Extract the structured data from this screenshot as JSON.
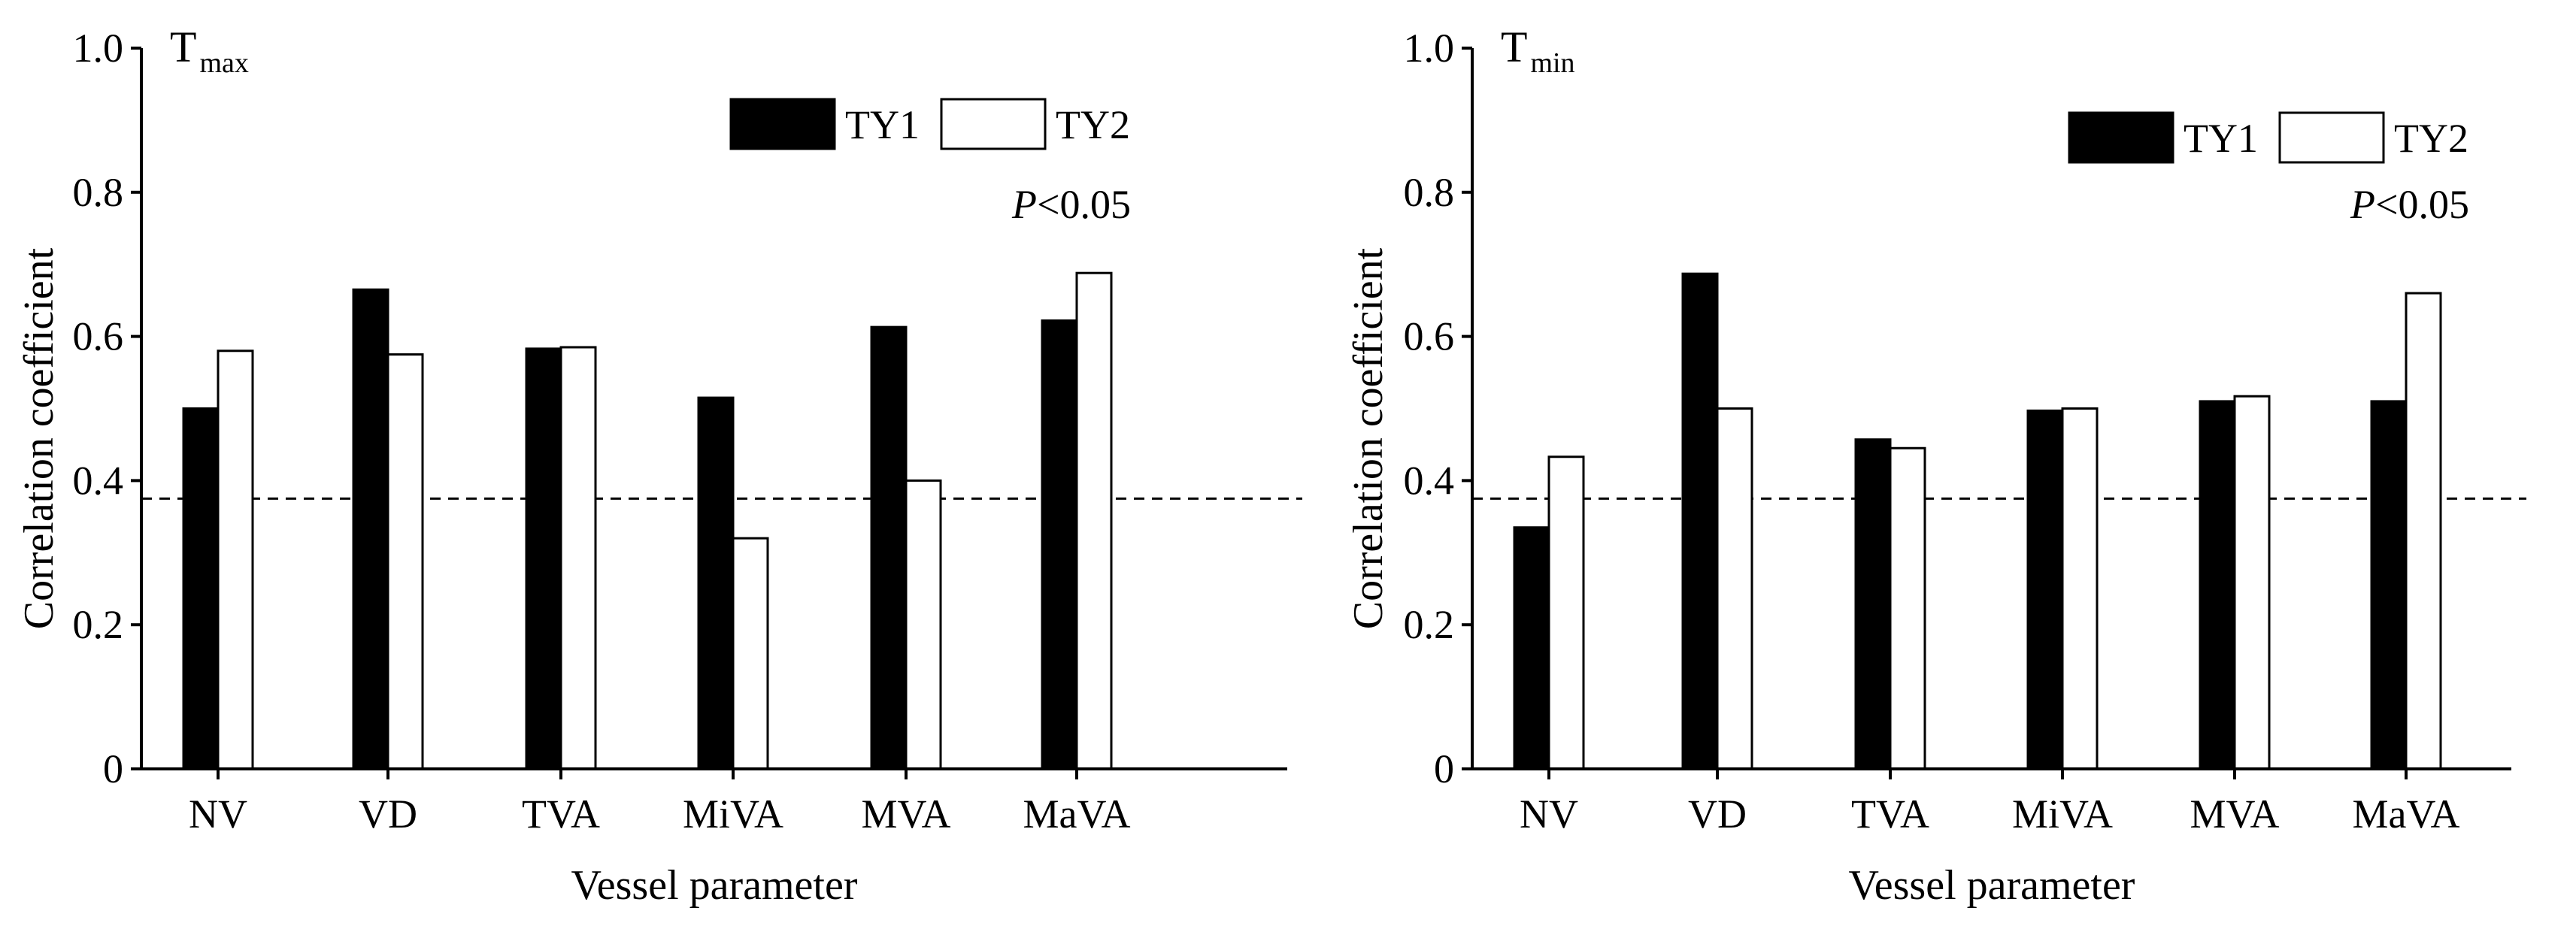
{
  "colors": {
    "series1": "#000000",
    "series2": "#ffffff",
    "axis": "#000000",
    "threshold_line": "#000000"
  },
  "threshold": 0.375,
  "chart_data": [
    {
      "type": "bar",
      "panel_title": {
        "main": "T",
        "subscript": "max"
      },
      "categories": [
        "NV",
        "VD",
        "TVA",
        "MiVA",
        "MVA",
        "MaVA"
      ],
      "series": [
        {
          "name": "TY1",
          "values": [
            0.5,
            0.665,
            0.583,
            0.515,
            0.613,
            0.622
          ]
        },
        {
          "name": "TY2",
          "values": [
            0.58,
            0.575,
            0.585,
            0.32,
            0.4,
            0.688
          ]
        }
      ],
      "xlabel": "Vessel parameter",
      "ylabel": "Correlation coefficient",
      "ylim": [
        0,
        1.0
      ],
      "yticks": [
        0,
        0.2,
        0.4,
        0.6,
        0.8,
        1.0
      ],
      "ytick_labels": [
        "0",
        "0.2",
        "0.4",
        "0.6",
        "0.8",
        "1.0"
      ],
      "legend": [
        "TY1",
        "TY2"
      ],
      "legend_position": "top-right",
      "annotation": {
        "italic": "P",
        "text": "<0.05"
      }
    },
    {
      "type": "bar",
      "panel_title": {
        "main": "T",
        "subscript": "min"
      },
      "categories": [
        "NV",
        "VD",
        "TVA",
        "MiVA",
        "MVA",
        "MaVA"
      ],
      "series": [
        {
          "name": "TY1",
          "values": [
            0.335,
            0.687,
            0.457,
            0.497,
            0.51,
            0.51
          ]
        },
        {
          "name": "TY2",
          "values": [
            0.433,
            0.5,
            0.445,
            0.5,
            0.517,
            0.66
          ]
        }
      ],
      "xlabel": "Vessel parameter",
      "ylabel": "Correlation coefficient",
      "ylim": [
        0,
        1.0
      ],
      "yticks": [
        0,
        0.2,
        0.4,
        0.6,
        0.8,
        1.0
      ],
      "ytick_labels": [
        "0",
        "0.2",
        "0.4",
        "0.6",
        "0.8",
        "1.0"
      ],
      "legend": [
        "TY1",
        "TY2"
      ],
      "legend_position": "top-right",
      "annotation": {
        "italic": "P",
        "text": "<0.05"
      }
    }
  ]
}
